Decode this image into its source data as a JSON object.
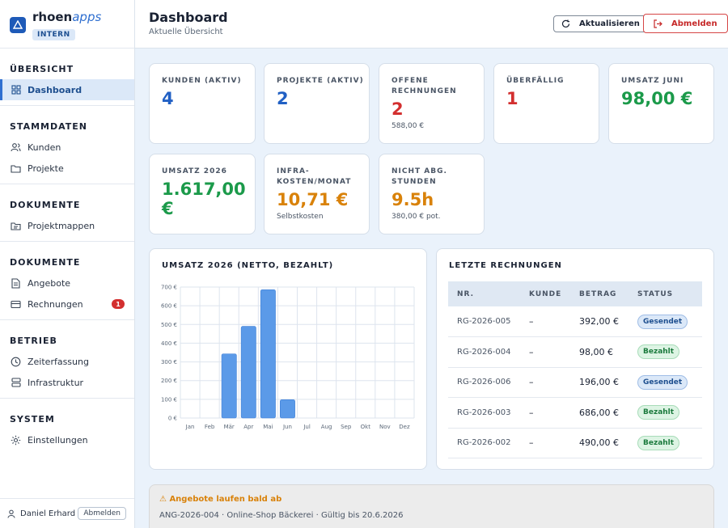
{
  "brand": {
    "name_main": "rhoen",
    "name_accent": "apps",
    "badge": "INTERN"
  },
  "sidebar": {
    "sections": [
      {
        "title": "ÜBERSICHT",
        "items": [
          {
            "label": "Dashboard",
            "icon": "grid-icon",
            "active": true
          }
        ]
      },
      {
        "title": "STAMMDATEN",
        "items": [
          {
            "label": "Kunden",
            "icon": "users-icon"
          },
          {
            "label": "Projekte",
            "icon": "folder-icon"
          }
        ]
      },
      {
        "title": "DOKUMENTE",
        "items": [
          {
            "label": "Projektmappen",
            "icon": "folder-list-icon"
          }
        ]
      },
      {
        "title": "DOKUMENTE",
        "items": [
          {
            "label": "Angebote",
            "icon": "document-icon"
          },
          {
            "label": "Rechnungen",
            "icon": "credit-card-icon",
            "badge": "1"
          }
        ]
      },
      {
        "title": "BETRIEB",
        "items": [
          {
            "label": "Zeiterfassung",
            "icon": "clock-icon"
          },
          {
            "label": "Infrastruktur",
            "icon": "server-icon"
          }
        ]
      },
      {
        "title": "SYSTEM",
        "items": [
          {
            "label": "Einstellungen",
            "icon": "gear-icon"
          }
        ]
      }
    ],
    "user": {
      "name": "Daniel Erhard",
      "logout_label": "Abmelden"
    }
  },
  "header": {
    "title": "Dashboard",
    "subtitle": "Aktuelle Übersicht",
    "refresh_label": "Aktualisieren",
    "logout_label": "Abmelden"
  },
  "stats": {
    "kunden": {
      "label": "KUNDEN (AKTIV)",
      "value": "4"
    },
    "projekte": {
      "label": "PROJEKTE (AKTIV)",
      "value": "2"
    },
    "offene": {
      "label_1": "OFFENE",
      "label_2": "RECHNUNGEN",
      "value": "2",
      "sub": "588,00 €"
    },
    "ueberfaellig": {
      "label": "ÜBERFÄLLIG",
      "value": "1"
    },
    "umsatz_juni": {
      "label": "UMSATZ JUNI",
      "value": "98,00 €"
    },
    "umsatz_jahr": {
      "label": "UMSATZ 2026",
      "value_1": "1.617,00",
      "value_2": "€"
    },
    "infra": {
      "label_1": "INFRA-",
      "label_2": "KOSTEN/MONAT",
      "value": "10,71 €",
      "sub": "Selbstkosten"
    },
    "stunden": {
      "label_1": "NICHT ABG.",
      "label_2": "STUNDEN",
      "value": "9.5h",
      "sub": "380,00 € pot."
    }
  },
  "chart_panel": {
    "title": "UMSATZ 2026 (NETTO, BEZAHLT)"
  },
  "chart_data": {
    "type": "bar",
    "title": "UMSATZ 2026 (NETTO, BEZAHLT)",
    "categories": [
      "Jan",
      "Feb",
      "Mär",
      "Apr",
      "Mai",
      "Jun",
      "Jul",
      "Aug",
      "Sep",
      "Okt",
      "Nov",
      "Dez"
    ],
    "values": [
      0,
      0,
      343,
      490,
      686,
      98,
      0,
      0,
      0,
      0,
      0,
      0
    ],
    "ylim": [
      0,
      700
    ],
    "yticks": [
      0,
      100,
      200,
      300,
      400,
      500,
      600,
      700
    ],
    "ytick_labels": [
      "0 €",
      "100 €",
      "200 €",
      "300 €",
      "400 €",
      "500 €",
      "600 €",
      "700 €"
    ],
    "grid": true,
    "bar_color": "#5b9ae8"
  },
  "invoices": {
    "title": "LETZTE RECHNUNGEN",
    "columns": [
      "NR.",
      "KUNDE",
      "BETRAG",
      "STATUS"
    ],
    "rows": [
      {
        "nr": "RG-2026-005",
        "kunde": "–",
        "betrag": "392,00 €",
        "status": "Gesendet",
        "kind": "sent"
      },
      {
        "nr": "RG-2026-004",
        "kunde": "–",
        "betrag": "98,00 €",
        "status": "Bezahlt",
        "kind": "paid"
      },
      {
        "nr": "RG-2026-006",
        "kunde": "–",
        "betrag": "196,00 €",
        "status": "Gesendet",
        "kind": "sent"
      },
      {
        "nr": "RG-2026-003",
        "kunde": "–",
        "betrag": "686,00 €",
        "status": "Bezahlt",
        "kind": "paid"
      },
      {
        "nr": "RG-2026-002",
        "kunde": "–",
        "betrag": "490,00 €",
        "status": "Bezahlt",
        "kind": "paid"
      }
    ]
  },
  "alert": {
    "title": "⚠ Angebote laufen bald ab",
    "text": "ANG-2026-004 · Online-Shop Bäckerei · Gültig bis 20.6.2026"
  }
}
